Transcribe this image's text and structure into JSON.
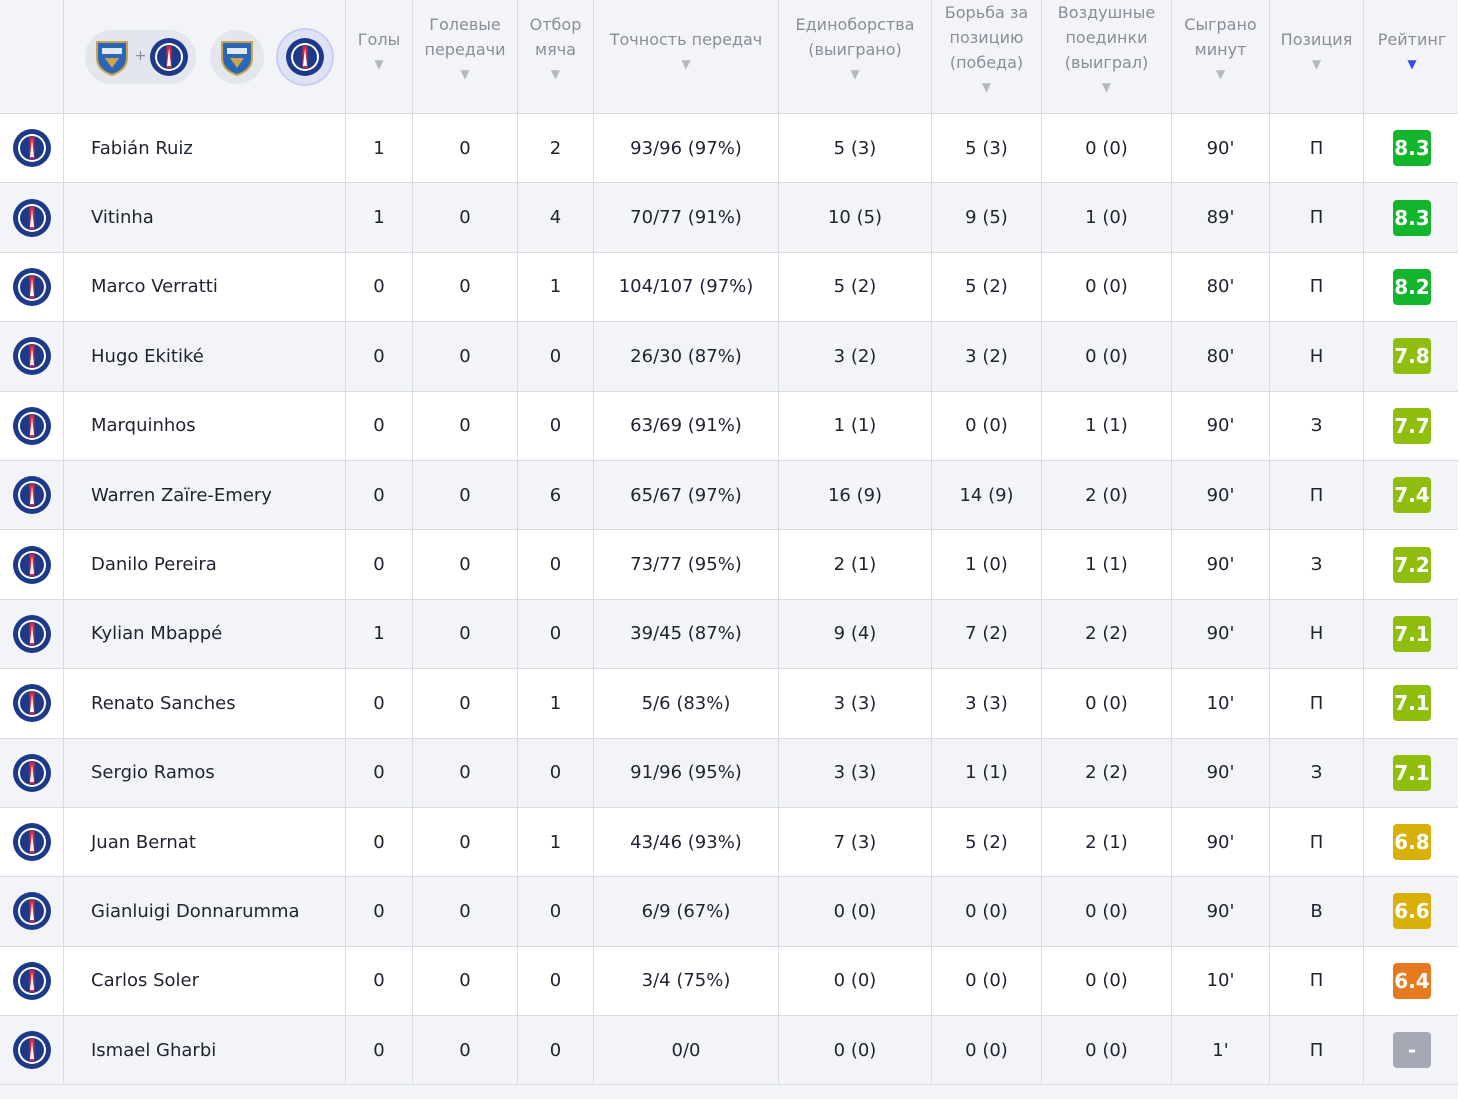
{
  "header": {
    "columns": [
      {
        "key": "goals",
        "label": "Голы"
      },
      {
        "key": "assists",
        "label": "Голевые передачи"
      },
      {
        "key": "tackles",
        "label": "Отбор мяча"
      },
      {
        "key": "passes",
        "label": "Точность передач"
      },
      {
        "key": "duels",
        "label": "Единоборства (выиграно)"
      },
      {
        "key": "ground",
        "label": "Борьба за позицию (победа)"
      },
      {
        "key": "aerial",
        "label": "Воздушные поединки (выиграл)"
      },
      {
        "key": "minutes",
        "label": "Сыграно минут"
      },
      {
        "key": "position",
        "label": "Позиция"
      },
      {
        "key": "rating",
        "label": "Рейтинг"
      }
    ],
    "goals_label": "Голы",
    "assists_label": "Голевые передачи",
    "tackles_label": "Отбор мяча",
    "passes_label": "Точность передач",
    "duels_label": "Единоборства (выиграно)",
    "ground_label": "Борьба за позицию (победа)",
    "aerial_label": "Воздушные поединки (выиграл)",
    "minutes_label": "Сыграно минут",
    "position_label": "Позиция",
    "rating_label": "Рейтинг",
    "team_filter": {
      "plus": "+",
      "selected": "psg"
    }
  },
  "colors": {
    "rating_green_dark": "#12b52b",
    "rating_green_light": "#8fbe0e",
    "rating_yellow": "#d8b008",
    "rating_orange": "#e57a1f",
    "rating_none": "#a6a9b4",
    "sort_active": "#3a4de8",
    "psg_blue": "#1d3a8a",
    "psg_red": "#d4283a",
    "estac_blue": "#2b66b8"
  },
  "players": [
    {
      "name": "Fabián Ruiz",
      "goals": "1",
      "assists": "0",
      "tackles": "2",
      "passes": "93/96 (97%)",
      "duels": "5 (3)",
      "ground": "5 (3)",
      "aerial": "0 (0)",
      "minutes": "90'",
      "position": "П",
      "rating": "8.3",
      "tier": "green_dark"
    },
    {
      "name": "Vitinha",
      "goals": "1",
      "assists": "0",
      "tackles": "4",
      "passes": "70/77 (91%)",
      "duels": "10 (5)",
      "ground": "9 (5)",
      "aerial": "1 (0)",
      "minutes": "89'",
      "position": "П",
      "rating": "8.3",
      "tier": "green_dark"
    },
    {
      "name": "Marco Verratti",
      "goals": "0",
      "assists": "0",
      "tackles": "1",
      "passes": "104/107 (97%)",
      "duels": "5 (2)",
      "ground": "5 (2)",
      "aerial": "0 (0)",
      "minutes": "80'",
      "position": "П",
      "rating": "8.2",
      "tier": "green_dark"
    },
    {
      "name": "Hugo Ekitiké",
      "goals": "0",
      "assists": "0",
      "tackles": "0",
      "passes": "26/30 (87%)",
      "duels": "3 (2)",
      "ground": "3 (2)",
      "aerial": "0 (0)",
      "minutes": "80'",
      "position": "Н",
      "rating": "7.8",
      "tier": "green_light"
    },
    {
      "name": "Marquinhos",
      "goals": "0",
      "assists": "0",
      "tackles": "0",
      "passes": "63/69 (91%)",
      "duels": "1 (1)",
      "ground": "0 (0)",
      "aerial": "1 (1)",
      "minutes": "90'",
      "position": "З",
      "rating": "7.7",
      "tier": "green_light"
    },
    {
      "name": "Warren Zaïre-Emery",
      "goals": "0",
      "assists": "0",
      "tackles": "6",
      "passes": "65/67 (97%)",
      "duels": "16 (9)",
      "ground": "14 (9)",
      "aerial": "2 (0)",
      "minutes": "90'",
      "position": "П",
      "rating": "7.4",
      "tier": "green_light"
    },
    {
      "name": "Danilo Pereira",
      "goals": "0",
      "assists": "0",
      "tackles": "0",
      "passes": "73/77 (95%)",
      "duels": "2 (1)",
      "ground": "1 (0)",
      "aerial": "1 (1)",
      "minutes": "90'",
      "position": "З",
      "rating": "7.2",
      "tier": "green_light"
    },
    {
      "name": "Kylian Mbappé",
      "goals": "1",
      "assists": "0",
      "tackles": "0",
      "passes": "39/45 (87%)",
      "duels": "9 (4)",
      "ground": "7 (2)",
      "aerial": "2 (2)",
      "minutes": "90'",
      "position": "Н",
      "rating": "7.1",
      "tier": "green_light"
    },
    {
      "name": "Renato Sanches",
      "goals": "0",
      "assists": "0",
      "tackles": "1",
      "passes": "5/6 (83%)",
      "duels": "3 (3)",
      "ground": "3 (3)",
      "aerial": "0 (0)",
      "minutes": "10'",
      "position": "П",
      "rating": "7.1",
      "tier": "green_light"
    },
    {
      "name": "Sergio Ramos",
      "goals": "0",
      "assists": "0",
      "tackles": "0",
      "passes": "91/96 (95%)",
      "duels": "3 (3)",
      "ground": "1 (1)",
      "aerial": "2 (2)",
      "minutes": "90'",
      "position": "З",
      "rating": "7.1",
      "tier": "green_light"
    },
    {
      "name": "Juan Bernat",
      "goals": "0",
      "assists": "0",
      "tackles": "1",
      "passes": "43/46 (93%)",
      "duels": "7 (3)",
      "ground": "5 (2)",
      "aerial": "2 (1)",
      "minutes": "90'",
      "position": "П",
      "rating": "6.8",
      "tier": "yellow"
    },
    {
      "name": "Gianluigi Donnarumma",
      "goals": "0",
      "assists": "0",
      "tackles": "0",
      "passes": "6/9 (67%)",
      "duels": "0 (0)",
      "ground": "0 (0)",
      "aerial": "0 (0)",
      "minutes": "90'",
      "position": "В",
      "rating": "6.6",
      "tier": "yellow"
    },
    {
      "name": "Carlos Soler",
      "goals": "0",
      "assists": "0",
      "tackles": "0",
      "passes": "3/4 (75%)",
      "duels": "0 (0)",
      "ground": "0 (0)",
      "aerial": "0 (0)",
      "minutes": "10'",
      "position": "П",
      "rating": "6.4",
      "tier": "orange"
    },
    {
      "name": "Ismael Gharbi",
      "goals": "0",
      "assists": "0",
      "tackles": "0",
      "passes": "0/0",
      "duels": "0 (0)",
      "ground": "0 (0)",
      "aerial": "0 (0)",
      "minutes": "1'",
      "position": "П",
      "rating": "-",
      "tier": "none"
    }
  ]
}
